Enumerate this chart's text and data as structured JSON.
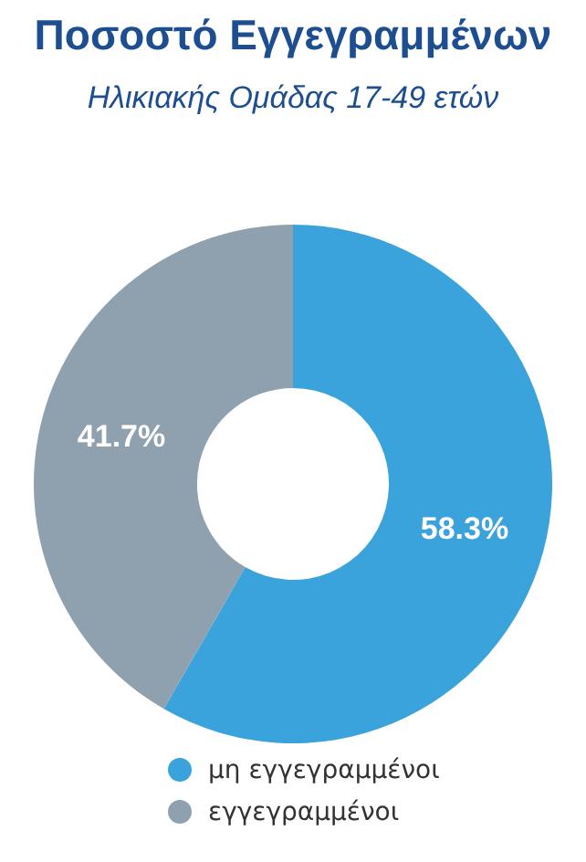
{
  "chart_data": {
    "type": "donut",
    "title": "Ποσοστό Εγγεγραμμένων",
    "subtitle": "Ηλικιακής Ομάδας 17-49 ετών",
    "categories": [
      "μη εγγεγραμμένοι",
      "εγγεγραμμένοι"
    ],
    "values": [
      58.3,
      41.7
    ],
    "colors": [
      "#3aa3dc",
      "#8fa0ae"
    ],
    "value_labels": [
      "58.3%",
      "41.7%"
    ],
    "legend": "bottom"
  }
}
